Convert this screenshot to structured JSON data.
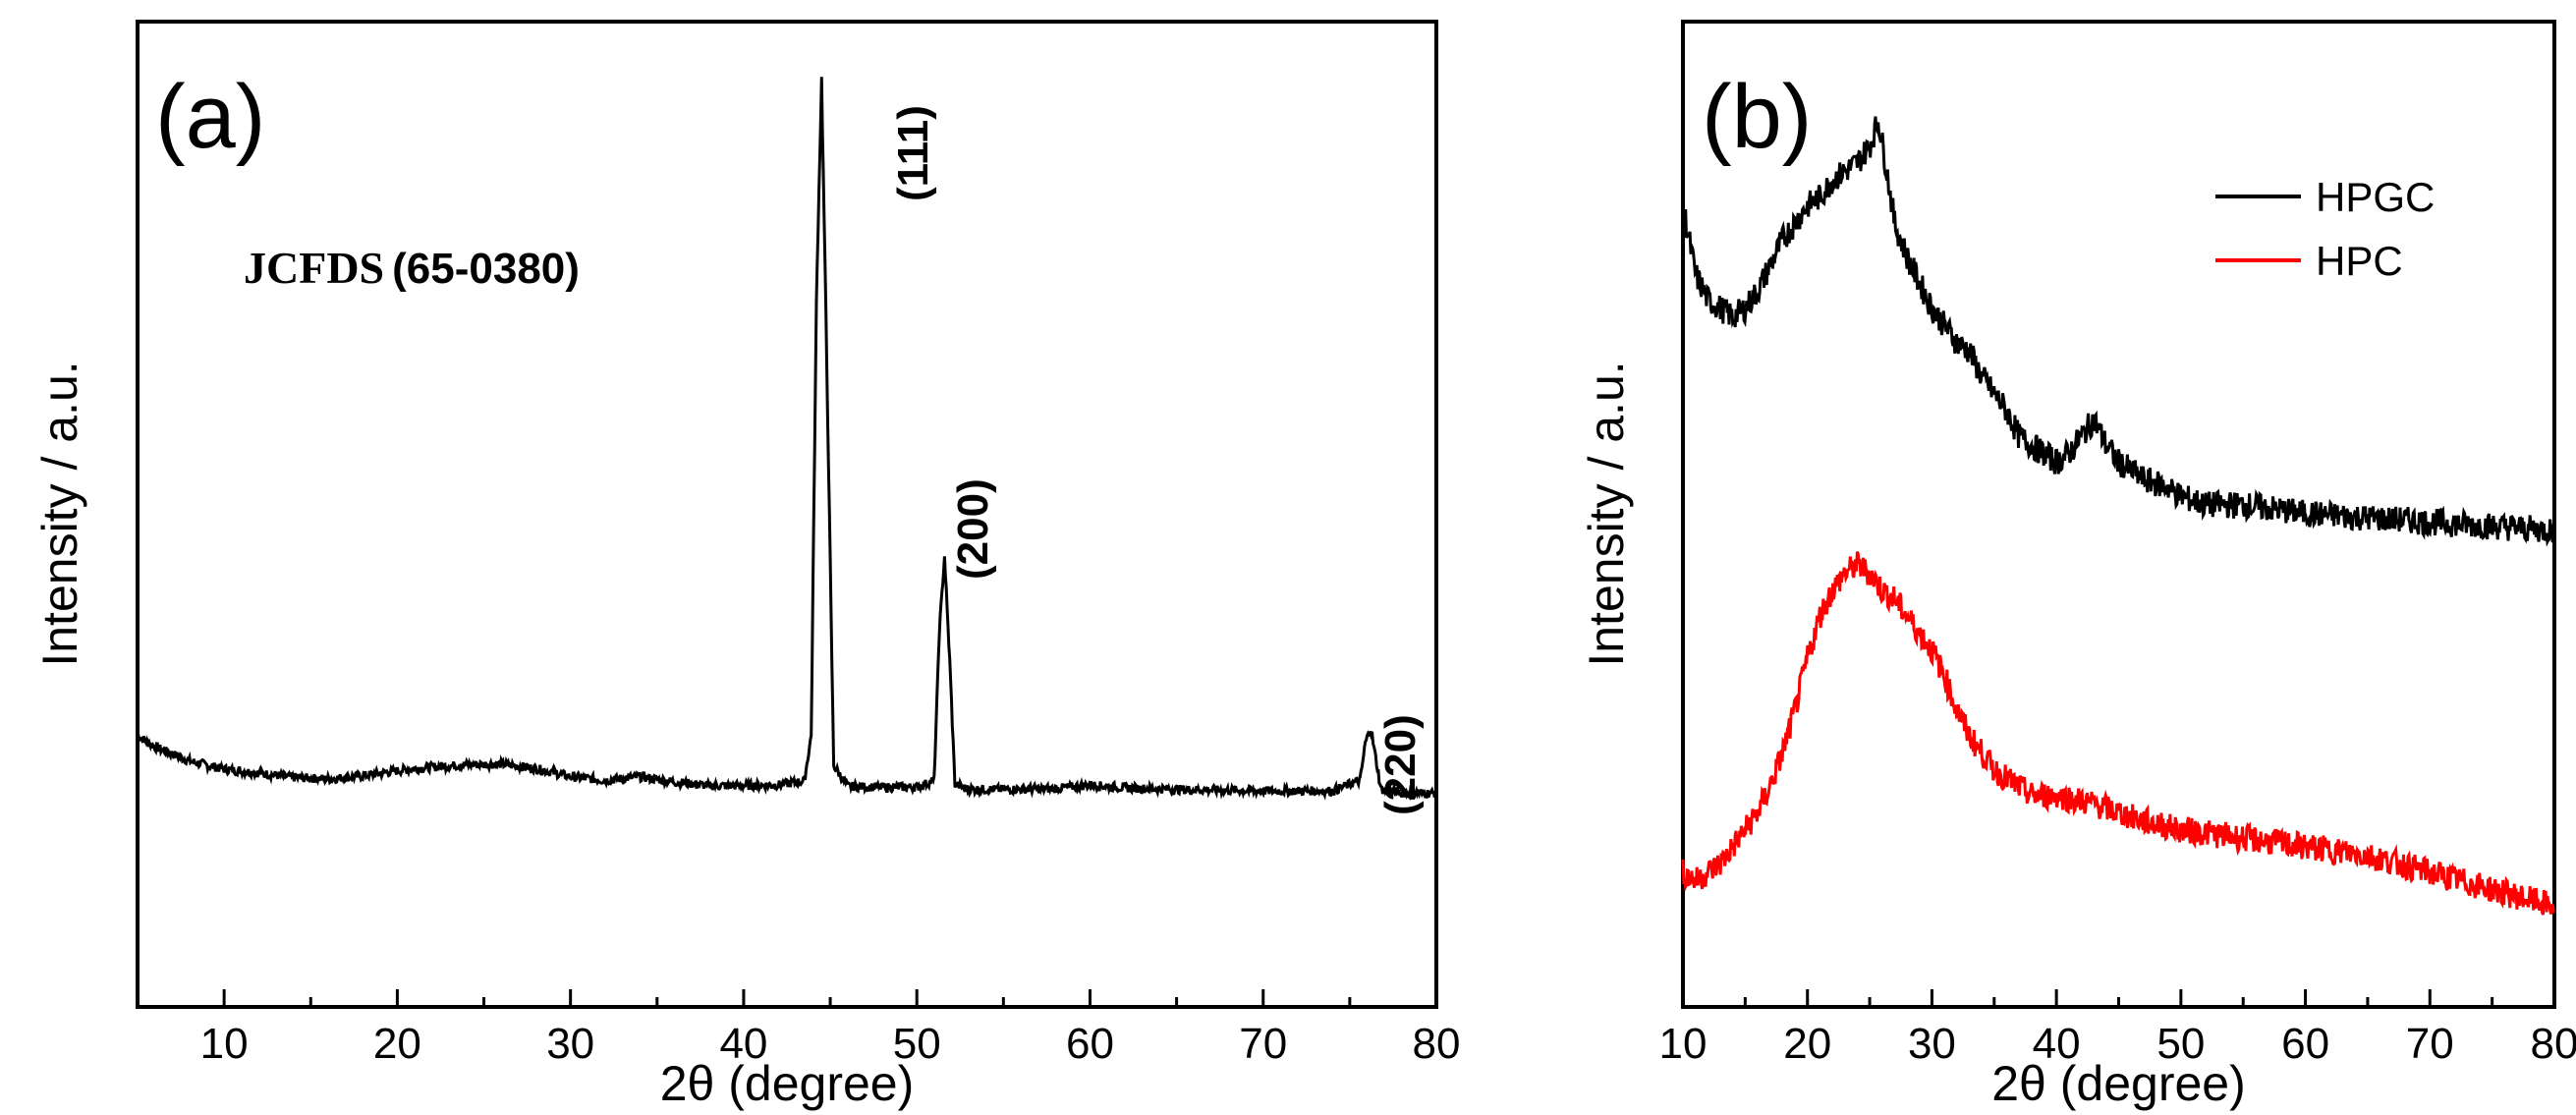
{
  "panels": [
    {
      "id": "a",
      "tag": "(a)",
      "xlabel": "2θ (degree)",
      "ylabel": "Intensity / a.u.",
      "card_label_main": "JCFDS",
      "card_label_num": "(65-0380)",
      "peaks": [
        {
          "label": "(111)"
        },
        {
          "label": "(200)"
        },
        {
          "label": "(220)"
        }
      ]
    },
    {
      "id": "b",
      "tag": "(b)",
      "xlabel": "2θ (degree)",
      "ylabel": "Intensity / a.u.",
      "legend": [
        {
          "label": "HPGC",
          "color": "#000000"
        },
        {
          "label": "HPC",
          "color": "#ff0000"
        }
      ]
    }
  ],
  "chart_data": [
    {
      "type": "line",
      "panel": "a",
      "title": "",
      "xlabel": "2θ (degree)",
      "ylabel": "Intensity / a.u.",
      "xlim": [
        5,
        80
      ],
      "ylim": [
        0,
        100
      ],
      "xticks": [
        10,
        20,
        30,
        40,
        50,
        60,
        70,
        80
      ],
      "yticks_shown": false,
      "grid": false,
      "series": [
        {
          "name": "XRD pattern",
          "color": "#000000",
          "x": [
            5,
            6,
            8,
            10,
            12,
            14,
            16,
            18,
            20,
            22,
            24,
            26,
            28,
            30,
            32,
            34,
            36,
            38,
            40,
            42,
            43.5,
            43.9,
            44.2,
            44.5,
            44.8,
            45.2,
            46,
            48,
            50,
            51.0,
            51.3,
            51.6,
            51.9,
            52.2,
            53,
            55,
            58,
            60,
            62,
            65,
            70,
            74,
            75.6,
            75.9,
            76.2,
            76.5,
            76.8,
            78,
            80
          ],
          "values": [
            12.0,
            10.5,
            8.6,
            7.5,
            7.0,
            6.4,
            6.2,
            6.6,
            7.3,
            7.8,
            8.1,
            8.2,
            7.6,
            6.5,
            6.0,
            6.5,
            5.8,
            5.3,
            5.3,
            5.4,
            5.9,
            12.0,
            70.0,
            100.0,
            62.0,
            8.0,
            5.2,
            5.1,
            5.1,
            6.0,
            26.0,
            36.0,
            22.0,
            5.5,
            4.8,
            4.8,
            4.9,
            5.4,
            5.0,
            4.8,
            4.6,
            4.6,
            6.0,
            11.0,
            13.0,
            9.0,
            4.8,
            4.3,
            4.3
          ]
        }
      ],
      "annotations": [
        "(111)",
        "(200)",
        "(220)",
        "JCFDS(65-0380)"
      ]
    },
    {
      "type": "line",
      "panel": "b",
      "title": "",
      "xlabel": "2θ (degree)",
      "ylabel": "Intensity / a.u.",
      "xlim": [
        10,
        80
      ],
      "ylim": [
        0,
        100
      ],
      "xticks": [
        10,
        20,
        30,
        40,
        50,
        60,
        70,
        80
      ],
      "yticks_shown": false,
      "grid": false,
      "legend_position": "top-right",
      "series": [
        {
          "name": "HPGC",
          "color": "#000000",
          "x": [
            10,
            11,
            12,
            13,
            14,
            15,
            16,
            17,
            18,
            19,
            20,
            21,
            22,
            23,
            24,
            25,
            25.7,
            26.5,
            27,
            28,
            29,
            30,
            31,
            32,
            33,
            34,
            35,
            36,
            37,
            38,
            39,
            40,
            41,
            42,
            43,
            44,
            45,
            47,
            49,
            50,
            52,
            55,
            60,
            65,
            70,
            75,
            80
          ],
          "values": [
            88,
            80,
            77,
            76,
            75,
            76,
            78,
            81,
            84,
            86,
            88,
            89,
            91,
            92,
            93,
            95,
            98,
            91,
            86,
            82,
            79,
            76,
            74,
            72,
            71,
            68,
            66,
            64,
            61,
            60,
            59,
            58,
            59,
            61,
            63,
            60,
            58,
            56,
            55,
            54,
            53,
            53,
            52,
            51.5,
            51,
            50.5,
            50
          ]
        },
        {
          "name": "HPC",
          "color": "#ff0000",
          "x": [
            10,
            11,
            12,
            13,
            14,
            15,
            16,
            17,
            18,
            19,
            20,
            21,
            22,
            23,
            24,
            25,
            26,
            27,
            28,
            29,
            30,
            31,
            32,
            33,
            34,
            35,
            36,
            37,
            38,
            40,
            43,
            45,
            47,
            50,
            55,
            60,
            65,
            70,
            75,
            80
          ],
          "values": [
            10,
            9,
            10,
            11,
            13,
            15,
            17,
            20,
            24,
            29,
            35,
            40,
            43,
            45,
            46,
            45,
            43,
            42,
            40,
            38,
            36,
            33,
            29,
            26,
            24,
            22,
            21,
            20,
            19,
            19,
            18,
            17,
            16,
            15,
            14,
            13,
            12,
            10,
            8,
            6
          ]
        }
      ]
    }
  ]
}
